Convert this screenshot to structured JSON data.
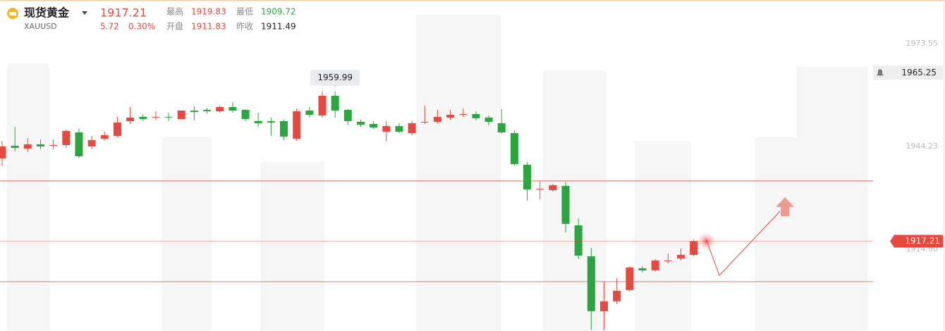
{
  "header": {
    "name": "现货黄金",
    "symbol": "XAUUSD",
    "price": 1917.21,
    "change": 5.72,
    "change_pct": {
      "value": 0.3,
      "label": "0.30%"
    },
    "stats": [
      {
        "label": "最高",
        "value": 1919.83,
        "color": "#e8483e"
      },
      {
        "label": "开盘",
        "value": 1911.83,
        "color": "#e8483e"
      },
      {
        "label": "最低",
        "value": 1909.72,
        "color": "#2aa63e"
      },
      {
        "label": "昨收",
        "value": 1911.49,
        "color": "#222222"
      }
    ]
  },
  "chart_data": {
    "type": "candlestick",
    "up_color": "#e8483e",
    "down_color": "#2aa63e",
    "open": [
      1940.82,
      1944.43,
      1943.63,
      1944.84,
      1944.43,
      1944.63,
      1948.25,
      1944.23,
      1946.44,
      1947.25,
      1951.46,
      1952.67,
      1952.47,
      1952.67,
      1952.06,
      1954.47,
      1954.67,
      1954.27,
      1955.48,
      1954.67,
      1951.46,
      1951.46,
      1951.46,
      1946.44,
      1954.47,
      1953.07,
      1958.69,
      1954.67,
      1951.26,
      1950.66,
      1948.45,
      1950.06,
      1948.05,
      1951.06,
      1951.26,
      1952.47,
      1953.27,
      1953.47,
      1952.47,
      1950.86,
      1948.05,
      1939.01,
      1931.99,
      1931.79,
      1932.99,
      1921.74,
      1912.91,
      1897.25,
      1900.06,
      1903.27,
      1909.49,
      1908.89,
      1911.5,
      1912.31,
      1913.31
    ],
    "high": [
      1945.84,
      1949.86,
      1946.64,
      1946.24,
      1946.24,
      1949.05,
      1949.25,
      1947.25,
      1948.45,
      1952.67,
      1955.48,
      1953.47,
      1954.27,
      1953.87,
      1954.47,
      1955.68,
      1955.28,
      1955.88,
      1956.88,
      1954.88,
      1953.87,
      1952.47,
      1951.86,
      1955.08,
      1955.48,
      1959.9,
      1959.99,
      1954.88,
      1951.86,
      1951.46,
      1951.46,
      1950.86,
      1951.46,
      1955.88,
      1954.67,
      1954.67,
      1955.08,
      1954.27,
      1953.07,
      1954.88,
      1948.85,
      1939.82,
      1934.19,
      1933.59,
      1934.19,
      1923.75,
      1915.32,
      1905.68,
      1906.68,
      1910.1,
      1910.1,
      1912.1,
      1913.71,
      1915.12,
      1917.73
    ],
    "low": [
      1938.81,
      1942.83,
      1942.63,
      1943.43,
      1943.43,
      1943.83,
      1941.02,
      1943.43,
      1946.04,
      1946.84,
      1950.66,
      1951.46,
      1951.86,
      1951.46,
      1951.86,
      1951.66,
      1953.67,
      1953.87,
      1953.87,
      1951.46,
      1949.86,
      1947.25,
      1946.04,
      1945.84,
      1952.47,
      1952.47,
      1952.47,
      1950.26,
      1949.86,
      1949.25,
      1945.64,
      1948.05,
      1947.45,
      1950.66,
      1950.86,
      1951.86,
      1952.67,
      1951.66,
      1950.26,
      1947.85,
      1938.81,
      1928.77,
      1929.17,
      1931.38,
      1919.73,
      1912.1,
      1891.9,
      1891.9,
      1899.25,
      1902.87,
      1908.29,
      1908.49,
      1910.9,
      1911.7,
      1912.91
    ],
    "close": [
      1944.23,
      1943.83,
      1944.84,
      1944.23,
      1944.63,
      1948.65,
      1941.42,
      1946.04,
      1947.45,
      1951.06,
      1952.47,
      1952.06,
      1952.67,
      1952.47,
      1954.47,
      1954.07,
      1954.27,
      1955.48,
      1954.47,
      1952.06,
      1950.86,
      1951.06,
      1947.05,
      1954.27,
      1953.27,
      1958.69,
      1954.47,
      1951.46,
      1950.46,
      1949.65,
      1950.06,
      1948.45,
      1950.86,
      1951.26,
      1952.67,
      1953.27,
      1953.47,
      1952.27,
      1951.26,
      1948.25,
      1939.21,
      1931.99,
      1932.19,
      1933.19,
      1922.15,
      1913.11,
      1897.25,
      1900.06,
      1903.07,
      1909.7,
      1908.89,
      1911.7,
      1911.7,
      1913.31,
      1917.21
    ],
    "ylim": [
      1891.6,
      1986.0
    ],
    "yticks": [
      1973.55,
      1944.23,
      {
        "value": 1914.9,
        "label": "1914.90"
      }
    ],
    "hlines": [
      1934.39,
      1905.68
    ],
    "alert_line": 1965.25,
    "line_color": "#e8483e"
  }
}
